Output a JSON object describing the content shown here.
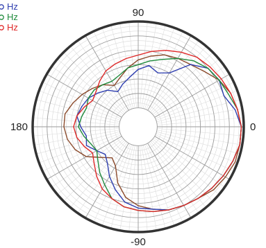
{
  "chart_data": {
    "type": "polar-line",
    "angle_tick_labels": [
      {
        "angle": 0,
        "text": "0"
      },
      {
        "angle": 90,
        "text": "90"
      },
      {
        "angle": 180,
        "text": "180"
      },
      {
        "angle": 270,
        "text": "-90"
      }
    ],
    "radial_scale": {
      "min_db": -36,
      "max_db": 0,
      "center_hole_fraction": 0.18
    },
    "grid": true,
    "legend_placement": "top-left",
    "series": [
      {
        "name": "Hz",
        "legend_label": "",
        "color": "#8b4a2b",
        "points": [
          [
            0,
            -1
          ],
          [
            10,
            -2
          ],
          [
            20,
            -3
          ],
          [
            30,
            -5
          ],
          [
            40,
            -8
          ],
          [
            50,
            -10
          ],
          [
            60,
            -11
          ],
          [
            70,
            -12
          ],
          [
            80,
            -14
          ],
          [
            90,
            -16
          ],
          [
            100,
            -19
          ],
          [
            110,
            -22
          ],
          [
            120,
            -24
          ],
          [
            130,
            -21
          ],
          [
            140,
            -19
          ],
          [
            150,
            -17
          ],
          [
            160,
            -15
          ],
          [
            170,
            -13
          ],
          [
            180,
            -13
          ],
          [
            190,
            -14
          ],
          [
            200,
            -16
          ],
          [
            210,
            -19
          ],
          [
            220,
            -24
          ],
          [
            230,
            -27
          ],
          [
            240,
            -25
          ],
          [
            250,
            -19
          ],
          [
            260,
            -14
          ],
          [
            270,
            -11
          ],
          [
            280,
            -9
          ],
          [
            290,
            -7
          ],
          [
            300,
            -6
          ],
          [
            310,
            -5
          ],
          [
            320,
            -3
          ],
          [
            330,
            -2
          ],
          [
            340,
            -1
          ],
          [
            350,
            -1
          ]
        ]
      },
      {
        "name": "Hz",
        "legend_label": "Hz",
        "color": "#2f3fb0",
        "points": [
          [
            0,
            -1
          ],
          [
            10,
            -3
          ],
          [
            20,
            -6
          ],
          [
            30,
            -5
          ],
          [
            40,
            -6
          ],
          [
            50,
            -10
          ],
          [
            60,
            -18
          ],
          [
            70,
            -20
          ],
          [
            80,
            -18
          ],
          [
            90,
            -20
          ],
          [
            100,
            -23
          ],
          [
            110,
            -25
          ],
          [
            120,
            -27
          ],
          [
            130,
            -24
          ],
          [
            140,
            -22
          ],
          [
            150,
            -20
          ],
          [
            160,
            -19
          ],
          [
            170,
            -18
          ],
          [
            180,
            -20
          ],
          [
            190,
            -22
          ],
          [
            200,
            -21
          ],
          [
            210,
            -24
          ],
          [
            220,
            -26
          ],
          [
            230,
            -24
          ],
          [
            240,
            -20
          ],
          [
            250,
            -16
          ],
          [
            260,
            -12
          ],
          [
            270,
            -10
          ],
          [
            280,
            -9
          ],
          [
            290,
            -7
          ],
          [
            300,
            -6
          ],
          [
            310,
            -5
          ],
          [
            320,
            -4
          ],
          [
            330,
            -3
          ],
          [
            340,
            -2
          ],
          [
            350,
            -1
          ]
        ]
      },
      {
        "name": "Hz",
        "legend_label": "Hz",
        "color": "#1f8a3c",
        "points": [
          [
            0,
            -1
          ],
          [
            10,
            -2
          ],
          [
            20,
            -4
          ],
          [
            30,
            -5
          ],
          [
            40,
            -6
          ],
          [
            50,
            -8
          ],
          [
            60,
            -11
          ],
          [
            70,
            -14
          ],
          [
            80,
            -16
          ],
          [
            90,
            -18
          ],
          [
            100,
            -19
          ],
          [
            110,
            -21
          ],
          [
            120,
            -22
          ],
          [
            130,
            -21
          ],
          [
            140,
            -20
          ],
          [
            150,
            -20
          ],
          [
            160,
            -21
          ],
          [
            170,
            -20
          ],
          [
            180,
            -19
          ],
          [
            190,
            -21
          ],
          [
            200,
            -23
          ],
          [
            210,
            -24
          ],
          [
            220,
            -22
          ],
          [
            230,
            -19
          ],
          [
            240,
            -16
          ],
          [
            250,
            -12
          ],
          [
            260,
            -10
          ],
          [
            270,
            -9
          ],
          [
            280,
            -8
          ],
          [
            290,
            -7
          ],
          [
            300,
            -6
          ],
          [
            310,
            -5
          ],
          [
            320,
            -4
          ],
          [
            330,
            -3
          ],
          [
            340,
            -2
          ],
          [
            350,
            -1
          ]
        ]
      },
      {
        "name": "Hz",
        "legend_label": "Hz",
        "color": "#e02828",
        "points": [
          [
            0,
            -1
          ],
          [
            10,
            -2
          ],
          [
            20,
            -3
          ],
          [
            30,
            -4
          ],
          [
            40,
            -5
          ],
          [
            50,
            -6
          ],
          [
            60,
            -8
          ],
          [
            70,
            -10
          ],
          [
            80,
            -12
          ],
          [
            90,
            -14
          ],
          [
            100,
            -15
          ],
          [
            110,
            -16
          ],
          [
            120,
            -17
          ],
          [
            130,
            -19
          ],
          [
            140,
            -21
          ],
          [
            150,
            -22
          ],
          [
            160,
            -20
          ],
          [
            170,
            -18
          ],
          [
            180,
            -17
          ],
          [
            190,
            -18
          ],
          [
            200,
            -20
          ],
          [
            210,
            -22
          ],
          [
            220,
            -20
          ],
          [
            230,
            -17
          ],
          [
            240,
            -14
          ],
          [
            250,
            -12
          ],
          [
            260,
            -10
          ],
          [
            270,
            -9
          ],
          [
            280,
            -8
          ],
          [
            290,
            -7
          ],
          [
            300,
            -6
          ],
          [
            310,
            -5
          ],
          [
            320,
            -4
          ],
          [
            330,
            -3
          ],
          [
            340,
            -2
          ],
          [
            350,
            -1
          ]
        ]
      }
    ]
  }
}
